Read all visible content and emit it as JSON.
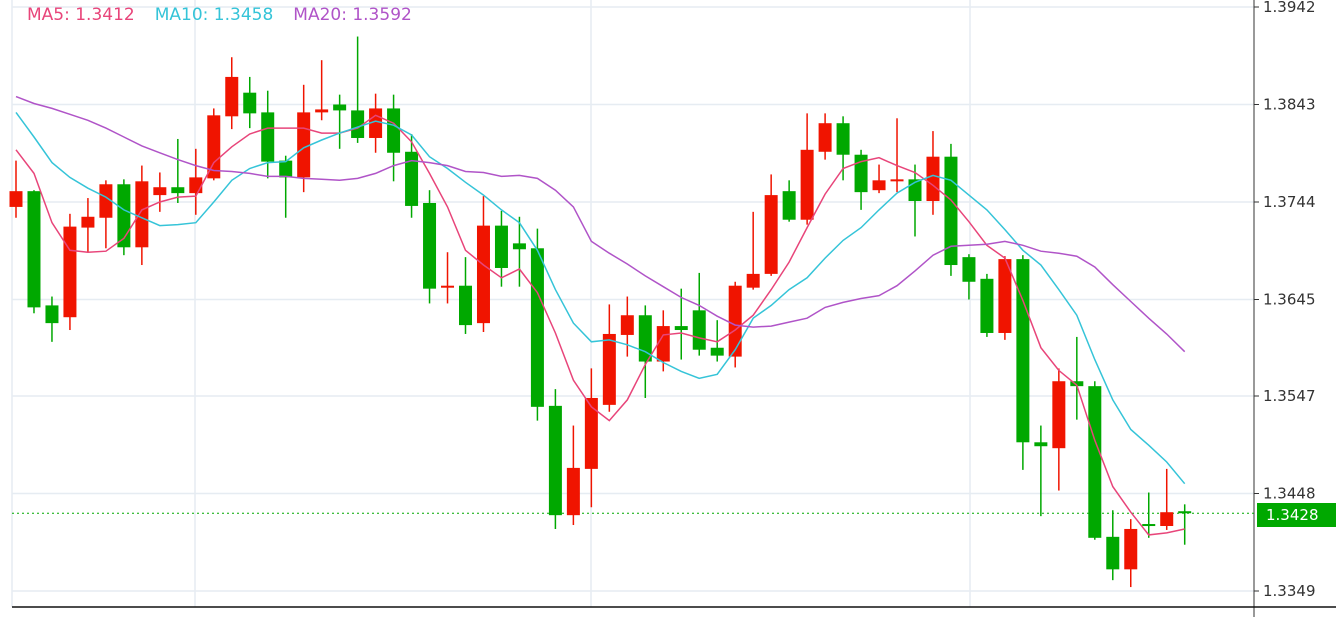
{
  "legend": {
    "ma5": {
      "label": "MA5: 1.3412",
      "color": "#e8457a"
    },
    "ma10": {
      "label": "MA10: 1.3458",
      "color": "#35c4d8"
    },
    "ma20": {
      "label": "MA20: 1.3592",
      "color": "#b054c8"
    }
  },
  "last_price_label": "1.3428",
  "colors": {
    "up": "#f01400",
    "down": "#00a800",
    "grid": "#e6ecf2",
    "last": "#00a800"
  },
  "chart_data": {
    "type": "candlestick",
    "ylim": [
      1.3349,
      1.3942
    ],
    "yticks": [
      "1.3942",
      "1.3843",
      "1.3744",
      "1.3645",
      "1.3547",
      "1.3448",
      "1.3349"
    ],
    "last_price": 1.3428,
    "candles_ohlc": [
      [
        1.3739,
        1.3786,
        1.3728,
        1.3755
      ],
      [
        1.3755,
        1.3756,
        1.3631,
        1.3637
      ],
      [
        1.3639,
        1.3648,
        1.3602,
        1.3621
      ],
      [
        1.3627,
        1.3732,
        1.3614,
        1.3719
      ],
      [
        1.3718,
        1.3748,
        1.3693,
        1.3729
      ],
      [
        1.3728,
        1.3766,
        1.3697,
        1.3762
      ],
      [
        1.3762,
        1.3767,
        1.369,
        1.3698
      ],
      [
        1.3698,
        1.3781,
        1.368,
        1.3765
      ],
      [
        1.3751,
        1.3774,
        1.3734,
        1.3759
      ],
      [
        1.3759,
        1.3808,
        1.3743,
        1.3753
      ],
      [
        1.3753,
        1.3798,
        1.3731,
        1.3769
      ],
      [
        1.3768,
        1.3839,
        1.3766,
        1.3832
      ],
      [
        1.3831,
        1.3891,
        1.3818,
        1.3871
      ],
      [
        1.3855,
        1.3871,
        1.3819,
        1.3834
      ],
      [
        1.3835,
        1.3857,
        1.3768,
        1.3785
      ],
      [
        1.3786,
        1.3791,
        1.3728,
        1.3769
      ],
      [
        1.3769,
        1.3863,
        1.3754,
        1.3835
      ],
      [
        1.3835,
        1.3888,
        1.3827,
        1.3838
      ],
      [
        1.3843,
        1.3853,
        1.3798,
        1.3837
      ],
      [
        1.3837,
        1.3912,
        1.3804,
        1.3809
      ],
      [
        1.3809,
        1.3854,
        1.3794,
        1.3839
      ],
      [
        1.3839,
        1.3853,
        1.3765,
        1.3794
      ],
      [
        1.3795,
        1.3813,
        1.3728,
        1.374
      ],
      [
        1.3743,
        1.3756,
        1.3641,
        1.3656
      ],
      [
        1.3657,
        1.3693,
        1.3641,
        1.3659
      ],
      [
        1.3659,
        1.3688,
        1.361,
        1.3619
      ],
      [
        1.3621,
        1.375,
        1.3612,
        1.372
      ],
      [
        1.372,
        1.3735,
        1.3658,
        1.3677
      ],
      [
        1.3702,
        1.3729,
        1.3658,
        1.3696
      ],
      [
        1.3697,
        1.3717,
        1.3522,
        1.3536
      ],
      [
        1.3537,
        1.3554,
        1.3412,
        1.3426
      ],
      [
        1.3426,
        1.3517,
        1.3416,
        1.3474
      ],
      [
        1.3473,
        1.3575,
        1.3434,
        1.3545
      ],
      [
        1.3538,
        1.364,
        1.3531,
        1.361
      ],
      [
        1.3609,
        1.3648,
        1.3587,
        1.3629
      ],
      [
        1.3629,
        1.3639,
        1.3545,
        1.3582
      ],
      [
        1.3582,
        1.3634,
        1.3572,
        1.3618
      ],
      [
        1.3618,
        1.3656,
        1.3584,
        1.3614
      ],
      [
        1.3634,
        1.3672,
        1.3588,
        1.3594
      ],
      [
        1.3596,
        1.3624,
        1.3582,
        1.3588
      ],
      [
        1.3587,
        1.3663,
        1.3576,
        1.3659
      ],
      [
        1.3657,
        1.3734,
        1.3655,
        1.3671
      ],
      [
        1.3671,
        1.3772,
        1.3669,
        1.3751
      ],
      [
        1.3755,
        1.3766,
        1.3724,
        1.3726
      ],
      [
        1.3726,
        1.3834,
        1.3721,
        1.3797
      ],
      [
        1.3795,
        1.3834,
        1.3787,
        1.3824
      ],
      [
        1.3824,
        1.3831,
        1.3766,
        1.3792
      ],
      [
        1.3792,
        1.3797,
        1.3736,
        1.3754
      ],
      [
        1.3756,
        1.3782,
        1.3753,
        1.3766
      ],
      [
        1.3766,
        1.3829,
        1.3754,
        1.3767
      ],
      [
        1.3767,
        1.3782,
        1.3709,
        1.3745
      ],
      [
        1.3745,
        1.3816,
        1.3731,
        1.379
      ],
      [
        1.379,
        1.3803,
        1.3669,
        1.368
      ],
      [
        1.3688,
        1.3691,
        1.3645,
        1.3663
      ],
      [
        1.3666,
        1.3671,
        1.3607,
        1.3611
      ],
      [
        1.3611,
        1.3689,
        1.3604,
        1.3686
      ],
      [
        1.3686,
        1.369,
        1.3472,
        1.35
      ],
      [
        1.35,
        1.3517,
        1.3425,
        1.3496
      ],
      [
        1.3494,
        1.3575,
        1.3451,
        1.3562
      ],
      [
        1.3562,
        1.3607,
        1.3523,
        1.3557
      ],
      [
        1.3557,
        1.3562,
        1.3401,
        1.3403
      ],
      [
        1.3404,
        1.3431,
        1.336,
        1.3371
      ],
      [
        1.3371,
        1.3422,
        1.3353,
        1.3412
      ],
      [
        1.3417,
        1.3449,
        1.3403,
        1.3415
      ],
      [
        1.3415,
        1.3473,
        1.3411,
        1.3429
      ],
      [
        1.343,
        1.3437,
        1.3396,
        1.3428
      ]
    ],
    "series": [
      {
        "name": "MA5",
        "values": [
          1.3797,
          1.3773,
          1.3723,
          1.3695,
          1.3693,
          1.3694,
          1.3707,
          1.3736,
          1.3744,
          1.3749,
          1.375,
          1.3784,
          1.38,
          1.3813,
          1.3819,
          1.3819,
          1.3819,
          1.3814,
          1.3814,
          1.3819,
          1.3832,
          1.3824,
          1.3805,
          1.3773,
          1.3739,
          1.3695,
          1.368,
          1.3667,
          1.3676,
          1.3652,
          1.3611,
          1.3563,
          1.3536,
          1.3522,
          1.3543,
          1.3579,
          1.3609,
          1.3611,
          1.3606,
          1.3602,
          1.3614,
          1.3629,
          1.3655,
          1.3683,
          1.3718,
          1.3752,
          1.3778,
          1.3785,
          1.3789,
          1.3781,
          1.3774,
          1.3761,
          1.3746,
          1.3724,
          1.37,
          1.3687,
          1.3644,
          1.3596,
          1.3573,
          1.3558,
          1.3502,
          1.3455,
          1.3429,
          1.3406,
          1.3408,
          1.3412
        ]
      },
      {
        "name": "MA10",
        "values": [
          1.3835,
          1.381,
          1.3784,
          1.3769,
          1.3758,
          1.3749,
          1.3736,
          1.3728,
          1.372,
          1.3721,
          1.3723,
          1.3744,
          1.3766,
          1.3778,
          1.3784,
          1.3785,
          1.3799,
          1.3807,
          1.3814,
          1.382,
          1.3826,
          1.3822,
          1.3812,
          1.379,
          1.3778,
          1.3764,
          1.3751,
          1.3736,
          1.3723,
          1.3695,
          1.3655,
          1.3621,
          1.3602,
          1.3604,
          1.3599,
          1.3592,
          1.3581,
          1.3572,
          1.3565,
          1.3569,
          1.3594,
          1.3626,
          1.3639,
          1.3655,
          1.3667,
          1.3687,
          1.3705,
          1.3718,
          1.3736,
          1.3753,
          1.3764,
          1.3771,
          1.3766,
          1.3751,
          1.3736,
          1.3716,
          1.3695,
          1.368,
          1.3655,
          1.3629,
          1.3584,
          1.3543,
          1.3513,
          1.3497,
          1.348,
          1.3458
        ]
      },
      {
        "name": "MA20",
        "values": [
          1.3851,
          1.3844,
          1.3839,
          1.3833,
          1.3827,
          1.3819,
          1.381,
          1.3801,
          1.3794,
          1.3787,
          1.3781,
          1.3776,
          1.3775,
          1.3773,
          1.377,
          1.377,
          1.3768,
          1.3767,
          1.3766,
          1.3768,
          1.3773,
          1.3781,
          1.3786,
          1.3784,
          1.3781,
          1.3775,
          1.3774,
          1.377,
          1.3771,
          1.3768,
          1.3756,
          1.3739,
          1.3704,
          1.3692,
          1.3681,
          1.3669,
          1.3658,
          1.3647,
          1.3639,
          1.3628,
          1.3619,
          1.3617,
          1.3618,
          1.3622,
          1.3626,
          1.3637,
          1.3642,
          1.3646,
          1.3649,
          1.3659,
          1.3674,
          1.369,
          1.3699,
          1.37,
          1.3701,
          1.3704,
          1.37,
          1.3694,
          1.3692,
          1.3689,
          1.3678,
          1.366,
          1.3643,
          1.3626,
          1.361,
          1.3592
        ]
      }
    ]
  }
}
